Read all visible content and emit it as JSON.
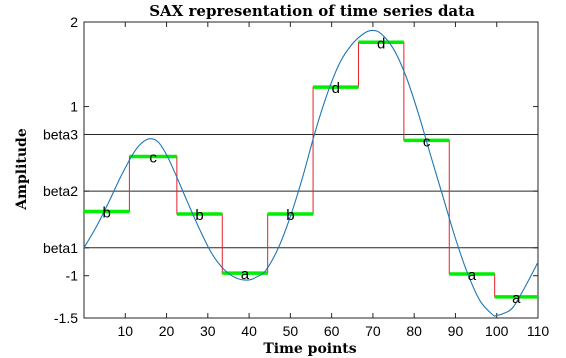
{
  "chart_data": {
    "type": "line",
    "title": "SAX representation of time series data",
    "xlabel": "Time points",
    "ylabel": "Amplitude",
    "xlim": [
      0,
      110
    ],
    "ylim": [
      -1.5,
      2
    ],
    "x_ticks": [
      {
        "value": 10,
        "label": "10"
      },
      {
        "value": 20,
        "label": "20"
      },
      {
        "value": 30,
        "label": "30"
      },
      {
        "value": 40,
        "label": "40"
      },
      {
        "value": 50,
        "label": "50"
      },
      {
        "value": 60,
        "label": "60"
      },
      {
        "value": 70,
        "label": "70"
      },
      {
        "value": 80,
        "label": "80"
      },
      {
        "value": 90,
        "label": "90"
      },
      {
        "value": 100,
        "label": "100"
      },
      {
        "value": 110,
        "label": "110"
      }
    ],
    "y_ticks": [
      {
        "value": -1.5,
        "label": "-1.5"
      },
      {
        "value": -1.0,
        "label": "-1"
      },
      {
        "value": -0.67,
        "label": "beta1"
      },
      {
        "value": 0.0,
        "label": "beta2"
      },
      {
        "value": 0.67,
        "label": "beta3"
      },
      {
        "value": 1.0,
        "label": "1"
      },
      {
        "value": 2.0,
        "label": "2"
      }
    ],
    "breakpoints": [
      {
        "name": "beta1",
        "value": -0.67
      },
      {
        "name": "beta2",
        "value": 0.0
      },
      {
        "name": "beta3",
        "value": 0.67
      }
    ],
    "series": [
      {
        "type": "line",
        "color": "#1f77b4",
        "x": [
          0,
          3,
          6,
          9,
          12,
          14,
          16,
          18,
          20,
          22,
          25,
          28,
          31,
          34,
          37,
          40,
          42,
          44,
          47,
          50,
          53,
          56,
          59,
          62,
          65,
          68,
          70,
          72,
          75,
          78,
          81,
          84,
          87,
          90,
          93,
          96,
          99,
          100,
          102,
          104,
          107,
          110
        ],
        "y": [
          -0.67,
          -0.42,
          -0.13,
          0.18,
          0.45,
          0.57,
          0.62,
          0.58,
          0.43,
          0.22,
          -0.12,
          -0.45,
          -0.74,
          -0.93,
          -1.03,
          -1.05,
          -1.01,
          -0.94,
          -0.68,
          -0.3,
          0.17,
          0.7,
          1.16,
          1.52,
          1.74,
          1.87,
          1.9,
          1.86,
          1.68,
          1.36,
          0.92,
          0.42,
          -0.07,
          -0.56,
          -0.98,
          -1.3,
          -1.46,
          -1.47,
          -1.44,
          -1.37,
          -1.12,
          -0.84
        ]
      },
      {
        "type": "step",
        "color": "#e8212b",
        "segment_color": "#00ee00",
        "segments": [
          {
            "x_start": 0,
            "x_end": 11,
            "y": -0.24,
            "symbol": "b"
          },
          {
            "x_start": 11,
            "x_end": 22.5,
            "y": 0.41,
            "symbol": "c"
          },
          {
            "x_start": 22.5,
            "x_end": 33.5,
            "y": -0.27,
            "symbol": "b"
          },
          {
            "x_start": 33.5,
            "x_end": 44.5,
            "y": -0.97,
            "symbol": "a"
          },
          {
            "x_start": 44.5,
            "x_end": 55.5,
            "y": -0.27,
            "symbol": "b"
          },
          {
            "x_start": 55.5,
            "x_end": 66.5,
            "y": 1.23,
            "symbol": "d"
          },
          {
            "x_start": 66.5,
            "x_end": 77.5,
            "y": 1.76,
            "symbol": "d"
          },
          {
            "x_start": 77.5,
            "x_end": 88.5,
            "y": 0.6,
            "symbol": "c"
          },
          {
            "x_start": 88.5,
            "x_end": 99.5,
            "y": -0.98,
            "symbol": "a"
          },
          {
            "x_start": 99.5,
            "x_end": 110,
            "y": -1.25,
            "symbol": "a"
          }
        ]
      }
    ],
    "grid": false,
    "legend": "none"
  }
}
